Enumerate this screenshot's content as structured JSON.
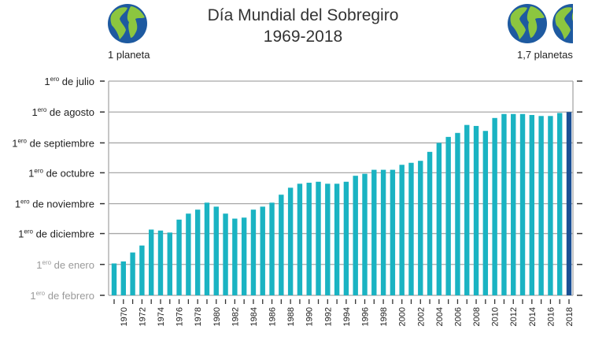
{
  "chart_data": {
    "type": "bar",
    "title": "Día Mundial del Sobregiro",
    "subtitle": "1969-2018",
    "left_icon_label": "1 planeta",
    "right_icon_label": "1,7 planetas",
    "y_axis": {
      "inverted": true,
      "ticks": [
        {
          "num": "1",
          "sup": "ero",
          "text": "de julio",
          "date": "07-01",
          "muted": false
        },
        {
          "num": "1",
          "sup": "ero",
          "text": "de agosto",
          "date": "08-01",
          "muted": false
        },
        {
          "num": "1",
          "sup": "ero",
          "text": "de septiembre",
          "date": "09-01",
          "muted": false
        },
        {
          "num": "1",
          "sup": "ero",
          "text": "de octubre",
          "date": "10-01",
          "muted": false
        },
        {
          "num": "1",
          "sup": "ero",
          "text": "de noviembre",
          "date": "11-01",
          "muted": false
        },
        {
          "num": "1",
          "sup": "ero",
          "text": "de diciembre",
          "date": "12-01",
          "muted": false
        },
        {
          "num": "1",
          "sup": "ero",
          "text": "de enero",
          "date": "01-01",
          "muted": true
        },
        {
          "num": "1",
          "sup": "ero",
          "text": "de febrero",
          "date": "02-01",
          "muted": true
        }
      ],
      "range": [
        "07-01",
        "02-01 (following year)"
      ]
    },
    "x_tick_labels": [
      "1970",
      "1972",
      "1974",
      "1976",
      "1978",
      "1980",
      "1982",
      "1984",
      "1986",
      "1988",
      "1990",
      "1992",
      "1994",
      "1996",
      "1998",
      "2000",
      "2002",
      "2004",
      "2006",
      "2008",
      "2010",
      "2012",
      "2014",
      "2016",
      "2018"
    ],
    "categories": [
      1969,
      1970,
      1971,
      1972,
      1973,
      1974,
      1975,
      1976,
      1977,
      1978,
      1979,
      1980,
      1981,
      1982,
      1983,
      1984,
      1985,
      1986,
      1987,
      1988,
      1989,
      1990,
      1991,
      1992,
      1993,
      1994,
      1995,
      1996,
      1997,
      1998,
      1999,
      2000,
      2001,
      2002,
      2003,
      2004,
      2005,
      2006,
      2007,
      2008,
      2009,
      2010,
      2011,
      2012,
      2013,
      2014,
      2015,
      2016,
      2017,
      2018
    ],
    "values": [
      "12-31",
      "12-29",
      "12-20",
      "12-13",
      "11-27",
      "11-28",
      "11-30",
      "11-17",
      "11-11",
      "11-07",
      "10-31",
      "11-04",
      "11-11",
      "11-16",
      "11-15",
      "11-07",
      "11-04",
      "10-31",
      "10-23",
      "10-16",
      "10-12",
      "10-11",
      "10-10",
      "10-12",
      "10-12",
      "10-10",
      "10-04",
      "10-02",
      "09-28",
      "09-28",
      "09-28",
      "09-23",
      "09-21",
      "09-19",
      "09-10",
      "09-01",
      "08-26",
      "08-22",
      "08-14",
      "08-15",
      "08-20",
      "08-07",
      "08-03",
      "08-03",
      "08-03",
      "08-04",
      "08-05",
      "08-05",
      "08-02",
      "08-01"
    ],
    "grid": true,
    "colors": {
      "bar": "#1ab3c2",
      "highlight_bar": "#1a4f94",
      "highlight_year": 2018,
      "grid": "#a8a8a8",
      "globe_ocean": "#1e5aa0",
      "globe_land": "#8cc63f"
    }
  }
}
